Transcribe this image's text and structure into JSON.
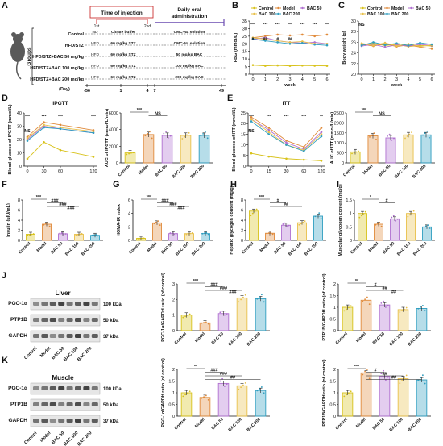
{
  "colors": {
    "control": "#d8c21a",
    "model": "#e08a3a",
    "bac50": "#b070d0",
    "bac100": "#e8c04a",
    "bac200": "#2f9ec0",
    "sig": "#111111"
  },
  "panel_labels": [
    "A",
    "B",
    "C",
    "D",
    "E",
    "F",
    "G",
    "H",
    "I",
    "J",
    "K"
  ],
  "panelA": {
    "groups_label": "Groups",
    "time_injection": "Time of injection",
    "daily_oral": "Daily oral",
    "administration": "administration",
    "first": "1st",
    "second": "2nd",
    "day_label": "(Day)",
    "days": [
      "-56",
      "1",
      "4",
      "7",
      "49"
    ],
    "rows": [
      {
        "name": "Control",
        "phase1": "ND",
        "phase2": "Citrate buffer",
        "phase3": "CMC-Na solution"
      },
      {
        "name": "HFD/STZ",
        "phase1": "HFD",
        "phase2": "60 mg/kg STZ",
        "phase3": "CMC-Na solution"
      },
      {
        "name": "HFD/STZ+BAC 50 mg/kg",
        "phase1": "HFD",
        "phase2": "60 mg/kg STZ",
        "phase3": "50 mg/kg BAC"
      },
      {
        "name": "HFD/STZ+BAC 100 mg/kg",
        "phase1": "HFD",
        "phase2": "60 mg/kg STZ",
        "phase3": "100 mg/kg BAC"
      },
      {
        "name": "HFD/STZ+BAC 200 mg/kg",
        "phase1": "HFD",
        "phase2": "60 mg/kg STZ",
        "phase3": "200 mg/kg BAC"
      }
    ]
  },
  "legend": [
    "Control",
    "Model",
    "BAC 50",
    "BAC 100",
    "BAC 200"
  ],
  "group_ticks": [
    "Control",
    "Model",
    "BAC 50",
    "BAC 100",
    "BAC 200"
  ],
  "chart_data": [
    {
      "id": "B",
      "type": "line",
      "ylabel": "FBG (mmol/L)",
      "xlabel": "week",
      "x": [
        0,
        1,
        2,
        3,
        4,
        5,
        6
      ],
      "ylim": [
        0,
        35
      ],
      "yticks": [
        0,
        5,
        10,
        15,
        20,
        25,
        30,
        35
      ],
      "series": [
        {
          "name": "Control",
          "values": [
            6,
            5.5,
            5.8,
            5.5,
            5.7,
            5.6,
            5.5
          ]
        },
        {
          "name": "Model",
          "values": [
            24,
            25,
            26,
            25.5,
            26,
            25,
            26
          ]
        },
        {
          "name": "BAC 50",
          "values": [
            23,
            24,
            22,
            21,
            20.5,
            21,
            20
          ]
        },
        {
          "name": "BAC 100",
          "values": [
            24,
            23,
            22,
            21,
            21.5,
            20,
            20
          ]
        },
        {
          "name": "BAC 200",
          "values": [
            23,
            22,
            21,
            20,
            20.5,
            19.5,
            19
          ]
        }
      ],
      "annotations": [
        "***",
        "***",
        "***",
        "***",
        "***",
        "***",
        "***",
        "#",
        "##",
        "#",
        "##"
      ]
    },
    {
      "id": "C",
      "type": "line",
      "ylabel": "Body weight (g)",
      "xlabel": "week",
      "x": [
        0,
        1,
        2,
        3,
        4,
        5,
        6
      ],
      "ylim": [
        20,
        30
      ],
      "yticks": [
        20,
        22,
        24,
        26,
        28,
        30
      ],
      "series": [
        {
          "name": "Control",
          "values": [
            25.5,
            25.8,
            25.4,
            25.6,
            25.2,
            25.4,
            25.3
          ]
        },
        {
          "name": "Model",
          "values": [
            25.6,
            25.3,
            25.7,
            25.2,
            25.5,
            25.1,
            24.8
          ]
        },
        {
          "name": "BAC 50",
          "values": [
            25.3,
            25.6,
            25.1,
            25.5,
            25.3,
            25.6,
            25.4
          ]
        },
        {
          "name": "BAC 100",
          "values": [
            25.8,
            25.4,
            25.9,
            25.3,
            25.7,
            25.2,
            25.5
          ]
        },
        {
          "name": "BAC 200",
          "values": [
            25.4,
            26.0,
            25.5,
            25.8,
            25.4,
            25.9,
            25.6
          ]
        }
      ],
      "annotations": [
        "NS"
      ]
    },
    {
      "id": "D1",
      "type": "line",
      "title": "IPGTT",
      "ylabel": "Blood glucose of IPGTT (mmol/L)",
      "xlabel": "",
      "x": [
        0,
        30,
        60,
        120
      ],
      "ylim": [
        0,
        40
      ],
      "yticks": [
        0,
        10,
        20,
        30,
        40
      ],
      "series": [
        {
          "name": "Control",
          "values": [
            5.5,
            18,
            12,
            7
          ]
        },
        {
          "name": "Model",
          "values": [
            22,
            33,
            31,
            27
          ]
        },
        {
          "name": "BAC 50",
          "values": [
            20,
            30,
            28,
            25
          ]
        },
        {
          "name": "BAC 100",
          "values": [
            21,
            31,
            29,
            26
          ]
        },
        {
          "name": "BAC 200",
          "values": [
            19,
            29,
            28,
            25
          ]
        }
      ],
      "annotations": [
        "***",
        "***",
        "***",
        "***",
        "NS"
      ]
    },
    {
      "id": "D2",
      "type": "bar",
      "ylabel": "AUC of IPGTT (mmol/L/min)",
      "categories": [
        "Control",
        "Model",
        "BAC 50",
        "BAC 100",
        "BAC 200"
      ],
      "values": [
        1200,
        3400,
        3300,
        3300,
        3300
      ],
      "ylim": [
        0,
        6000
      ],
      "yticks": [
        0,
        2000,
        4000,
        6000
      ],
      "annotations": [
        "***",
        "NS"
      ]
    },
    {
      "id": "E1",
      "type": "line",
      "title": "ITT",
      "ylabel": "Blood glucose of ITT (mmol/L)",
      "xlabel": "",
      "x": [
        0,
        15,
        30,
        60,
        120
      ],
      "ylim": [
        0,
        25
      ],
      "yticks": [
        0,
        5,
        10,
        15,
        20,
        25
      ],
      "series": [
        {
          "name": "Control",
          "values": [
            6,
            4.5,
            3.5,
            3,
            2.5
          ]
        },
        {
          "name": "Model",
          "values": [
            23,
            18,
            12,
            9,
            18
          ]
        },
        {
          "name": "BAC 50",
          "values": [
            22,
            17,
            11,
            8,
            16
          ]
        },
        {
          "name": "BAC 100",
          "values": [
            22,
            16,
            10,
            7.5,
            15
          ]
        },
        {
          "name": "BAC 200",
          "values": [
            21,
            15,
            10,
            7,
            14
          ]
        }
      ],
      "annotations": [
        "***",
        "***",
        "***",
        "***",
        "**",
        "NS"
      ]
    },
    {
      "id": "E2",
      "type": "bar",
      "ylabel": "AUC of ITT (mmol/L/min)",
      "categories": [
        "Control",
        "Model",
        "BAC 50",
        "BAC 100",
        "BAC 200"
      ],
      "values": [
        550,
        1350,
        1250,
        1400,
        1400
      ],
      "ylim": [
        0,
        2500
      ],
      "yticks": [
        0,
        500,
        1000,
        1500,
        2000,
        2500
      ],
      "annotations": [
        "***",
        "NS"
      ]
    },
    {
      "id": "F",
      "type": "bar",
      "ylabel": "Insulin (μIU/mL)",
      "categories": [
        "Control",
        "Model",
        "BAC 50",
        "BAC 100",
        "BAC 200"
      ],
      "values": [
        1.2,
        3.2,
        1.3,
        1.2,
        1.0
      ],
      "ylim": [
        0,
        8
      ],
      "yticks": [
        0,
        2,
        4,
        6,
        8
      ],
      "annotations": [
        "***",
        "###",
        "###",
        "###"
      ]
    },
    {
      "id": "G",
      "type": "bar",
      "ylabel": "HOMA-IR index",
      "categories": [
        "Control",
        "Model",
        "BAC 50",
        "BAC 100",
        "BAC 200"
      ],
      "values": [
        0.3,
        2.6,
        1.0,
        1.0,
        1.0
      ],
      "ylim": [
        0,
        6
      ],
      "yticks": [
        0,
        2,
        4,
        6
      ],
      "annotations": [
        "***",
        "###",
        "###",
        "###"
      ]
    },
    {
      "id": "H",
      "type": "bar",
      "ylabel": "Hepatic glycogen content (mg/g)",
      "categories": [
        "Control",
        "Model",
        "BAC 50",
        "BAC 100",
        "BAC 200"
      ],
      "values": [
        5.8,
        1.4,
        3.0,
        3.5,
        4.8
      ],
      "ylim": [
        0,
        8
      ],
      "yticks": [
        0,
        2,
        4,
        6,
        8
      ],
      "annotations": [
        "***",
        "#",
        "##"
      ]
    },
    {
      "id": "I",
      "type": "bar",
      "ylabel": "Muscular glycogen content (mg/g)",
      "categories": [
        "Control",
        "Model",
        "BAC 50",
        "BAC 100",
        "BAC 200"
      ],
      "values": [
        1.0,
        0.6,
        0.8,
        1.0,
        0.5
      ],
      "ylim": [
        0,
        1.5
      ],
      "yticks": [
        0,
        0.5,
        1.0,
        1.5
      ],
      "annotations": [
        "*",
        "#"
      ]
    },
    {
      "id": "J1",
      "type": "bar",
      "ylabel": "PGC-1α/GAPDH ratio (of control)",
      "categories": [
        "Control",
        "Model",
        "BAC 50",
        "BAC 100",
        "BAC 200"
      ],
      "values": [
        1.0,
        0.5,
        1.1,
        2.1,
        2.05
      ],
      "ylim": [
        0,
        3
      ],
      "yticks": [
        0,
        1,
        2,
        3
      ],
      "annotations": [
        "***",
        "###",
        "###",
        "###"
      ]
    },
    {
      "id": "J2",
      "type": "bar",
      "ylabel": "PTP1B/GAPDH ratio (of control)",
      "categories": [
        "Control",
        "Model",
        "BAC 50",
        "BAC 100",
        "BAC 200"
      ],
      "values": [
        1.0,
        1.3,
        1.1,
        0.9,
        0.95
      ],
      "ylim": [
        0,
        2
      ],
      "yticks": [
        0,
        0.5,
        1.0,
        1.5,
        2.0
      ],
      "annotations": [
        "**",
        "#",
        "##",
        "##"
      ]
    },
    {
      "id": "K1",
      "type": "bar",
      "ylabel": "PGC-1α/GAPDH ratio (of control)",
      "categories": [
        "Control",
        "Model",
        "BAC 50",
        "BAC 100",
        "BAC 200"
      ],
      "values": [
        1.0,
        0.8,
        1.4,
        1.3,
        1.1
      ],
      "ylim": [
        0,
        2
      ],
      "yticks": [
        0,
        0.5,
        1.0,
        1.5,
        2.0
      ],
      "annotations": [
        "**",
        "###",
        "###",
        "##"
      ]
    },
    {
      "id": "K2",
      "type": "bar",
      "ylabel": "PTP1B/GAPDH ratio (of control)",
      "categories": [
        "Control",
        "Model",
        "BAC 50",
        "BAC 100",
        "BAC 200"
      ],
      "values": [
        1.0,
        1.85,
        1.7,
        1.6,
        1.55
      ],
      "ylim": [
        0,
        2
      ],
      "yticks": [
        0,
        0.5,
        1.0,
        1.5,
        2.0
      ],
      "annotations": [
        "***",
        "#",
        "##",
        "##"
      ]
    }
  ],
  "blotJ": {
    "title": "Liver",
    "rows": [
      {
        "protein": "PGC-1α",
        "size": "100 kDa"
      },
      {
        "protein": "PTP1B",
        "size": "50 kDa"
      },
      {
        "protein": "GAPDH",
        "size": "37 kDa"
      }
    ]
  },
  "blotK": {
    "title": "Muscle",
    "rows": [
      {
        "protein": "PGC-1α",
        "size": "100 kDa"
      },
      {
        "protein": "PTP1B",
        "size": "50 kDa"
      },
      {
        "protein": "GAPDH",
        "size": "37 kDa"
      }
    ]
  }
}
